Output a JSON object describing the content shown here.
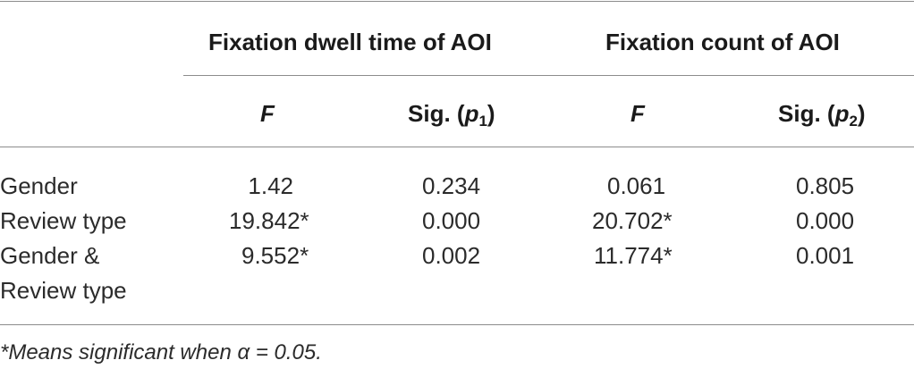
{
  "table": {
    "group_headers": [
      "Fixation dwell time of AOI",
      "Fixation count of AOI"
    ],
    "column_headers": {
      "f1": "F",
      "sig1_prefix": "Sig. (",
      "sig1_var": "p",
      "sig1_sub": "1",
      "sig1_suffix": ")",
      "f2": "F",
      "sig2_prefix": "Sig. (",
      "sig2_var": "p",
      "sig2_sub": "2",
      "sig2_suffix": ")"
    },
    "rows": [
      {
        "label": "Gender",
        "label_line2": "",
        "f1": "1.42",
        "sig1": "0.234",
        "f2": "0.061",
        "sig2": "0.805"
      },
      {
        "label": "Review type",
        "label_line2": "",
        "f1": "19.842*",
        "sig1": "0.000",
        "f2": "20.702*",
        "sig2": "0.000"
      },
      {
        "label": "Gender &",
        "label_line2": "Review type",
        "f1": "9.552*",
        "sig1": "0.002",
        "f2": "11.774*",
        "sig2": "0.001"
      }
    ],
    "footnote": "*Means significant when α = 0.05."
  }
}
